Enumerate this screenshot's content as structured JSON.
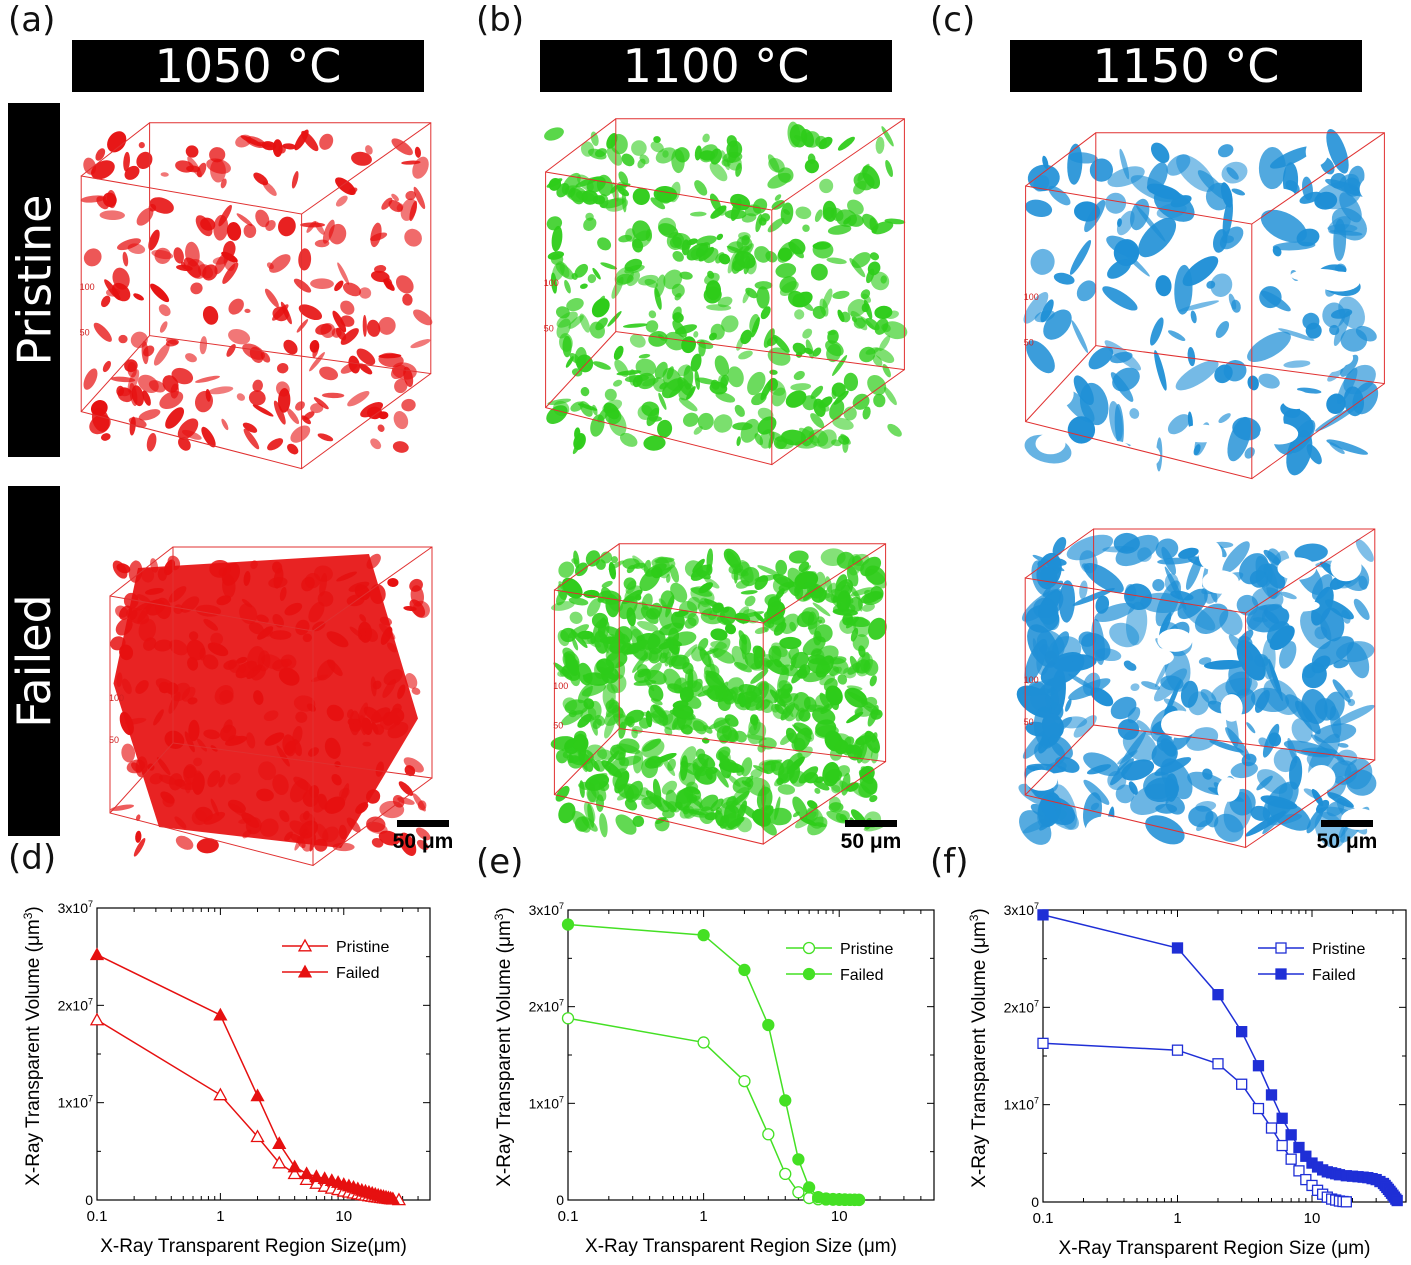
{
  "panel_labels": [
    "(a)",
    "(b)",
    "(c)",
    "(d)",
    "(e)",
    "(f)"
  ],
  "columns": [
    {
      "temperature": "1050 °C",
      "color": "#e61010"
    },
    {
      "temperature": "1100 °C",
      "color": "#2ecc1a"
    },
    {
      "temperature": "1150 °C",
      "color": "#1e8fd6"
    }
  ],
  "row_labels": {
    "pristine": "Pristine",
    "failed": "Failed"
  },
  "scale_bar": "50 μm",
  "cube_axis_ticks": {
    "a": [
      "50",
      "100"
    ],
    "b": [
      "50",
      "100"
    ]
  },
  "chart_data": [
    {
      "type": "line",
      "panel": "(d)",
      "xlabel": "X-Ray Transparent Region Size(μm)",
      "ylabel": "X-Ray Transparent Volume (μm3)",
      "xscale": "log",
      "xlim": [
        0.1,
        50
      ],
      "ylim": [
        0,
        30000000
      ],
      "x_ticks": [
        "0.1",
        "1",
        "10"
      ],
      "y_ticks": [
        "0",
        "1x10^7",
        "2x10^7",
        "3x10^7"
      ],
      "legend_position": "top-right",
      "color": "#e61010",
      "marker": "triangle",
      "series": [
        {
          "name": "Pristine",
          "filled": false,
          "x": [
            0.1,
            1,
            2,
            3,
            4,
            5,
            6,
            7,
            8,
            9,
            10,
            11,
            12,
            13,
            14,
            15,
            16,
            17,
            18,
            19,
            20,
            21,
            22,
            23,
            24,
            25,
            28
          ],
          "y": [
            18500000,
            10800000,
            6500000,
            3800000,
            2700000,
            2100000,
            1700000,
            1400000,
            1200000,
            1050000,
            900000,
            800000,
            700000,
            620000,
            550000,
            480000,
            420000,
            370000,
            320000,
            280000,
            240000,
            200000,
            170000,
            140000,
            110000,
            80000,
            20000
          ]
        },
        {
          "name": "Failed",
          "filled": true,
          "x": [
            0.1,
            1,
            2,
            3,
            4,
            5,
            6,
            7,
            8,
            9,
            10,
            11,
            12,
            13,
            14,
            15,
            16,
            17,
            18,
            19,
            20,
            21,
            22,
            23,
            24,
            25
          ],
          "y": [
            25200000,
            19000000,
            10700000,
            5800000,
            3400000,
            2700000,
            2400000,
            2200000,
            2000000,
            1800000,
            1600000,
            1450000,
            1300000,
            1150000,
            1000000,
            900000,
            800000,
            700000,
            600000,
            500000,
            430000,
            360000,
            300000,
            240000,
            180000,
            120000
          ]
        }
      ]
    },
    {
      "type": "line",
      "panel": "(e)",
      "xlabel": "X-Ray Transparent Region Size (μm)",
      "ylabel": "X-Ray Transparent Volume (μm3)",
      "xscale": "log",
      "xlim": [
        0.1,
        50
      ],
      "ylim": [
        0,
        30000000
      ],
      "x_ticks": [
        "0.1",
        "1",
        "10"
      ],
      "y_ticks": [
        "0",
        "1x10^7",
        "2x10^7",
        "3x10^7"
      ],
      "legend_position": "top-right",
      "color": "#44e024",
      "marker": "circle",
      "series": [
        {
          "name": "Pristine",
          "filled": false,
          "x": [
            0.1,
            1,
            2,
            3,
            4,
            5,
            6,
            7,
            8,
            9,
            10,
            11,
            12,
            13,
            14
          ],
          "y": [
            18800000,
            16300000,
            12300000,
            6800000,
            2700000,
            800000,
            200000,
            80000,
            50000,
            30000,
            20000,
            15000,
            10000,
            8000,
            5000
          ]
        },
        {
          "name": "Failed",
          "filled": true,
          "x": [
            0.1,
            1,
            2,
            3,
            4,
            5,
            6,
            7,
            8,
            9,
            10,
            11,
            12,
            13,
            14
          ],
          "y": [
            28500000,
            27400000,
            23800000,
            18100000,
            10300000,
            4200000,
            1300000,
            300000,
            150000,
            100000,
            80000,
            60000,
            40000,
            30000,
            20000
          ]
        }
      ]
    },
    {
      "type": "line",
      "panel": "(f)",
      "xlabel": "X-Ray Transparent Region Size (μm)",
      "ylabel": "X-Ray Transparent Volume (μm3)",
      "xscale": "log",
      "xlim": [
        0.1,
        50
      ],
      "ylim": [
        0,
        30000000
      ],
      "x_ticks": [
        "0.1",
        "1",
        "10"
      ],
      "y_ticks": [
        "0",
        "1x10^7",
        "2x10^7",
        "3x10^7"
      ],
      "legend_position": "top-right",
      "color": "#1f2fd6",
      "marker": "square",
      "series": [
        {
          "name": "Pristine",
          "filled": false,
          "x": [
            0.1,
            1,
            2,
            3,
            4,
            5,
            6,
            7,
            8,
            9,
            10,
            11,
            12,
            13,
            14,
            15,
            16,
            17,
            18
          ],
          "y": [
            16300000,
            15600000,
            14200000,
            12100000,
            9600000,
            7600000,
            5800000,
            4400000,
            3200000,
            2300000,
            1700000,
            1200000,
            800000,
            500000,
            300000,
            200000,
            100000,
            50000,
            20000
          ]
        },
        {
          "name": "Failed",
          "filled": true,
          "x": [
            0.1,
            1,
            2,
            3,
            4,
            5,
            6,
            7,
            8,
            9,
            10,
            11,
            12,
            13,
            14,
            15,
            16,
            18,
            20,
            22,
            24,
            26,
            28,
            30,
            32,
            34,
            35,
            36,
            37,
            38,
            39,
            40,
            41,
            42,
            43
          ],
          "y": [
            29500000,
            26100000,
            21300000,
            17500000,
            14000000,
            11000000,
            8600000,
            6900000,
            5600000,
            4700000,
            4000000,
            3600000,
            3300000,
            3100000,
            3000000,
            2900000,
            2800000,
            2700000,
            2650000,
            2600000,
            2550000,
            2500000,
            2400000,
            2300000,
            2100000,
            1900000,
            1700000,
            1500000,
            1300000,
            1100000,
            900000,
            700000,
            500000,
            300000,
            150000
          ]
        }
      ]
    }
  ]
}
